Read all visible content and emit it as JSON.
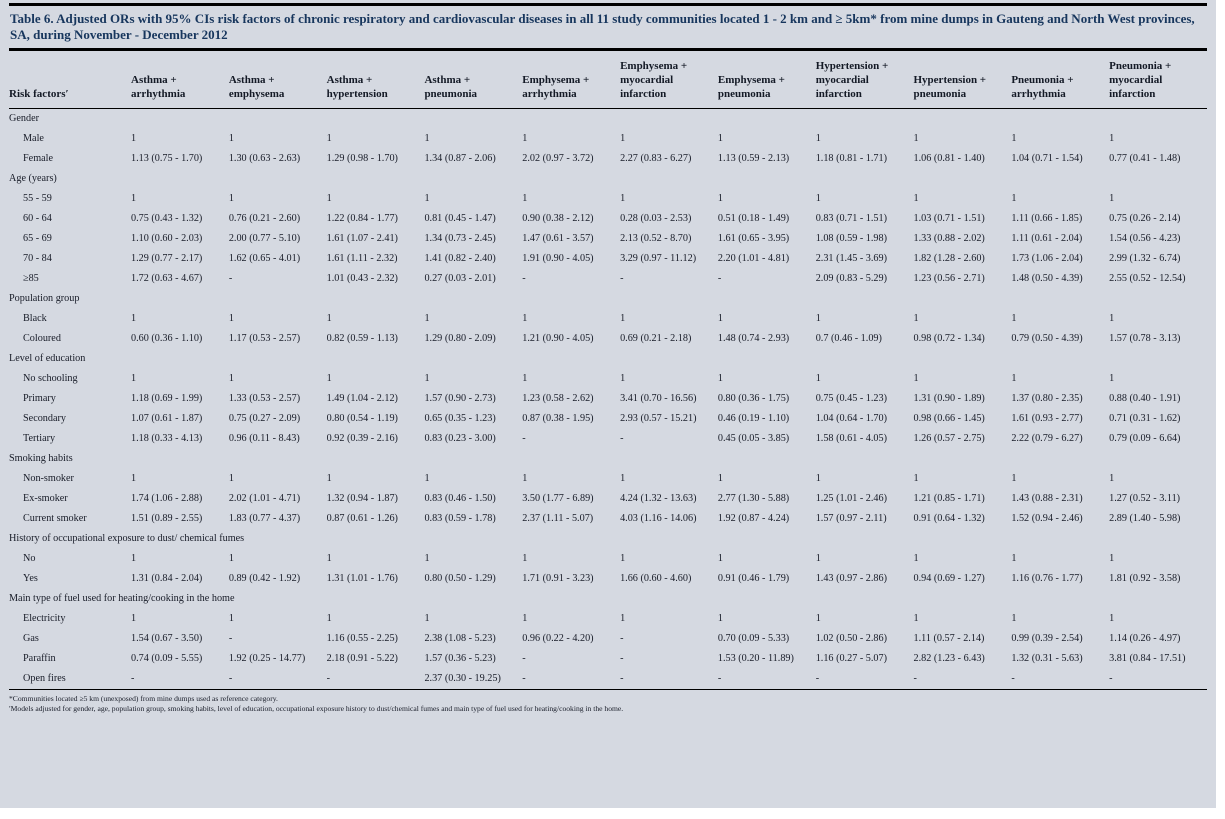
{
  "title": "Table 6. Adjusted ORs with 95% CIs risk factors of chronic respiratory and cardiovascular diseases in all 11 study communities located 1 - 2 km and ≥ 5km* from mine dumps in Gauteng and North West provinces, SA, during November - December 2012",
  "columns": [
    "Risk factors′",
    "Asthma + arrhythmia",
    "Asthma + emphysema",
    "Asthma + hypertension",
    "Asthma + pneumonia",
    "Emphysema + arrhythmia",
    "Emphysema + myocardial infarction",
    "Emphysema + pneumonia",
    "Hypertension + myocardial infarction",
    "Hypertension + pneumonia",
    "Pneumonia + arrhythmia",
    "Pneumonia + myocardial infarction"
  ],
  "sections": [
    {
      "label": "Gender",
      "rows": [
        {
          "label": "Male",
          "values": [
            "1",
            "1",
            "1",
            "1",
            "1",
            "1",
            "1",
            "1",
            "1",
            "1",
            "1"
          ]
        },
        {
          "label": "Female",
          "values": [
            "1.13 (0.75 - 1.70)",
            "1.30 (0.63 - 2.63)",
            "1.29 (0.98 - 1.70)",
            "1.34 (0.87 - 2.06)",
            "2.02 (0.97 - 3.72)",
            "2.27 (0.83 - 6.27)",
            "1.13 (0.59 - 2.13)",
            "1.18 (0.81 - 1.71)",
            "1.06 (0.81 - 1.40)",
            "1.04 (0.71 - 1.54)",
            "0.77 (0.41 - 1.48)"
          ]
        }
      ]
    },
    {
      "label": "Age (years)",
      "rows": [
        {
          "label": "55 - 59",
          "values": [
            "1",
            "1",
            "1",
            "1",
            "1",
            "1",
            "1",
            "1",
            "1",
            "1",
            "1"
          ]
        },
        {
          "label": "60 - 64",
          "values": [
            "0.75 (0.43 - 1.32)",
            "0.76 (0.21 - 2.60)",
            "1.22 (0.84 - 1.77)",
            "0.81 (0.45 - 1.47)",
            "0.90 (0.38 - 2.12)",
            "0.28 (0.03 - 2.53)",
            "0.51 (0.18 - 1.49)",
            "0.83 (0.71 - 1.51)",
            "1.03 (0.71 - 1.51)",
            "1.11 (0.66 - 1.85)",
            "0.75 (0.26 - 2.14)"
          ]
        },
        {
          "label": "65 - 69",
          "values": [
            "1.10 (0.60 - 2.03)",
            "2.00 (0.77 - 5.10)",
            "1.61 (1.07 - 2.41)",
            "1.34 (0.73 - 2.45)",
            "1.47 (0.61 - 3.57)",
            "2.13 (0.52 - 8.70)",
            "1.61 (0.65 - 3.95)",
            "1.08 (0.59 - 1.98)",
            "1.33 (0.88 - 2.02)",
            "1.11 (0.61 - 2.04)",
            "1.54 (0.56 - 4.23)"
          ]
        },
        {
          "label": "70 - 84",
          "values": [
            "1.29 (0.77 - 2.17)",
            "1.62 (0.65 - 4.01)",
            "1.61 (1.11 - 2.32)",
            "1.41 (0.82 - 2.40)",
            "1.91 (0.90 - 4.05)",
            "3.29 (0.97 - 11.12)",
            "2.20 (1.01 - 4.81)",
            "2.31 (1.45 - 3.69)",
            "1.82 (1.28 - 2.60)",
            "1.73 (1.06 - 2.04)",
            "2.99 (1.32 - 6.74)"
          ]
        },
        {
          "label": "≥85",
          "values": [
            "1.72 (0.63 - 4.67)",
            "-",
            "1.01 (0.43 - 2.32)",
            "0.27 (0.03 - 2.01)",
            "-",
            "-",
            "-",
            "2.09 (0.83 - 5.29)",
            "1.23 (0.56 - 2.71)",
            "1.48 (0.50 - 4.39)",
            "2.55 (0.52 - 12.54)"
          ]
        }
      ]
    },
    {
      "label": "Population group",
      "rows": [
        {
          "label": "Black",
          "values": [
            "1",
            "1",
            "1",
            "1",
            "1",
            "1",
            "1",
            "1",
            "1",
            "1",
            "1"
          ]
        },
        {
          "label": "Coloured",
          "values": [
            "0.60 (0.36 - 1.10)",
            "1.17 (0.53 - 2.57)",
            "0.82 (0.59 - 1.13)",
            "1.29 (0.80 - 2.09)",
            "1.21 (0.90 - 4.05)",
            "0.69 (0.21 - 2.18)",
            "1.48 (0.74 - 2.93)",
            "0.7 (0.46 - 1.09)",
            "0.98 (0.72 - 1.34)",
            "0.79 (0.50 - 4.39)",
            "1.57 (0.78 - 3.13)"
          ]
        }
      ]
    },
    {
      "label": "Level of education",
      "rows": [
        {
          "label": "No schooling",
          "values": [
            "1",
            "1",
            "1",
            "1",
            "1",
            "1",
            "1",
            "1",
            "1",
            "1",
            "1"
          ]
        },
        {
          "label": "Primary",
          "values": [
            "1.18 (0.69 - 1.99)",
            "1.33 (0.53 - 2.57)",
            "1.49 (1.04 - 2.12)",
            "1.57 (0.90 - 2.73)",
            "1.23 (0.58 - 2.62)",
            "3.41 (0.70 - 16.56)",
            "0.80 (0.36 - 1.75)",
            "0.75 (0.45 - 1.23)",
            "1.31 (0.90 - 1.89)",
            "1.37 (0.80 - 2.35)",
            "0.88 (0.40 - 1.91)"
          ]
        },
        {
          "label": "Secondary",
          "values": [
            "1.07 (0.61 - 1.87)",
            "0.75 (0.27 - 2.09)",
            "0.80 (0.54 - 1.19)",
            "0.65 (0.35 - 1.23)",
            "0.87 (0.38 - 1.95)",
            "2.93 (0.57 - 15.21)",
            "0.46 (0.19 - 1.10)",
            "1.04 (0.64 - 1.70)",
            "0.98 (0.66 - 1.45)",
            "1.61 (0.93 - 2.77)",
            "0.71 (0.31 - 1.62)"
          ]
        },
        {
          "label": "Tertiary",
          "values": [
            "1.18 (0.33 - 4.13)",
            "0.96 (0.11 - 8.43)",
            "0.92 (0.39 - 2.16)",
            "0.83 (0.23 - 3.00)",
            "-",
            "-",
            "0.45 (0.05 - 3.85)",
            "1.58 (0.61 - 4.05)",
            "1.26 (0.57 - 2.75)",
            "2.22 (0.79 - 6.27)",
            "0.79 (0.09 - 6.64)"
          ]
        }
      ]
    },
    {
      "label": "Smoking habits",
      "rows": [
        {
          "label": "Non-smoker",
          "values": [
            "1",
            "1",
            "1",
            "1",
            "1",
            "1",
            "1",
            "1",
            "1",
            "1",
            "1"
          ]
        },
        {
          "label": "Ex-smoker",
          "values": [
            "1.74 (1.06 - 2.88)",
            "2.02 (1.01 - 4.71)",
            "1.32 (0.94 - 1.87)",
            "0.83 (0.46 - 1.50)",
            "3.50 (1.77 - 6.89)",
            "4.24 (1.32 - 13.63)",
            "2.77 (1.30 - 5.88)",
            "1.25 (1.01 - 2.46)",
            "1.21 (0.85 - 1.71)",
            "1.43 (0.88 - 2.31)",
            "1.27 (0.52 - 3.11)"
          ]
        },
        {
          "label": "Current smoker",
          "values": [
            "1.51 (0.89 - 2.55)",
            "1.83 (0.77 - 4.37)",
            "0.87 (0.61 - 1.26)",
            "0.83 (0.59 - 1.78)",
            "2.37 (1.11 - 5.07)",
            "4.03 (1.16 - 14.06)",
            "1.92 (0.87 - 4.24)",
            "1.57 (0.97 - 2.11)",
            "0.91 (0.64 - 1.32)",
            "1.52 (0.94 - 2.46)",
            "2.89 (1.40 - 5.98)"
          ]
        }
      ]
    },
    {
      "label": "History of occupational exposure to dust/ chemical fumes",
      "rows": [
        {
          "label": "No",
          "values": [
            "1",
            "1",
            "1",
            "1",
            "1",
            "1",
            "1",
            "1",
            "1",
            "1",
            "1"
          ]
        },
        {
          "label": "Yes",
          "values": [
            "1.31 (0.84 - 2.04)",
            "0.89 (0.42 - 1.92)",
            "1.31 (1.01 - 1.76)",
            "0.80 (0.50 - 1.29)",
            "1.71 (0.91 - 3.23)",
            "1.66 (0.60 - 4.60)",
            "0.91 (0.46 - 1.79)",
            "1.43 (0.97 - 2.86)",
            "0.94 (0.69 - 1.27)",
            "1.16 (0.76 - 1.77)",
            "1.81 (0.92 - 3.58)"
          ]
        }
      ]
    },
    {
      "label": "Main type of fuel used for heating/cooking in the home",
      "rows": [
        {
          "label": "Electricity",
          "values": [
            "1",
            "1",
            "1",
            "1",
            "1",
            "1",
            "1",
            "1",
            "1",
            "1",
            "1"
          ]
        },
        {
          "label": "Gas",
          "values": [
            "1.54 (0.67 - 3.50)",
            "-",
            "1.16 (0.55 - 2.25)",
            "2.38 (1.08 - 5.23)",
            "0.96 (0.22 - 4.20)",
            "-",
            "0.70 (0.09 - 5.33)",
            "1.02 (0.50 - 2.86)",
            "1.11 (0.57 - 2.14)",
            "0.99 (0.39 - 2.54)",
            "1.14 (0.26 - 4.97)"
          ]
        },
        {
          "label": "Paraffin",
          "values": [
            "0.74 (0.09 - 5.55)",
            "1.92 (0.25 - 14.77)",
            "2.18 (0.91 - 5.22)",
            "1.57 (0.36 - 5.23)",
            "-",
            "-",
            "1.53 (0.20 - 11.89)",
            "1.16 (0.27 - 5.07)",
            "2.82 (1.23 - 6.43)",
            "1.32 (0.31 - 5.63)",
            "3.81 (0.84 - 17.51)"
          ]
        },
        {
          "label": "Open fires",
          "values": [
            "-",
            "-",
            "-",
            "2.37 (0.30 - 19.25)",
            "-",
            "-",
            "-",
            "-",
            "-",
            "-",
            "-"
          ]
        }
      ]
    }
  ],
  "footnotes": [
    "*Communities located ≥5 km (unexposed) from mine dumps used as reference category.",
    "′Models adjusted for gender, age, population group, smoking habits, level of education, occupational exposure history to dust/chemical fumes and main type of fuel used for heating/cooking in the home."
  ],
  "colors": {
    "panel_background": "#d5d9e1",
    "title_text": "#17365d",
    "body_text": "#181c28",
    "rule": "#000000"
  }
}
